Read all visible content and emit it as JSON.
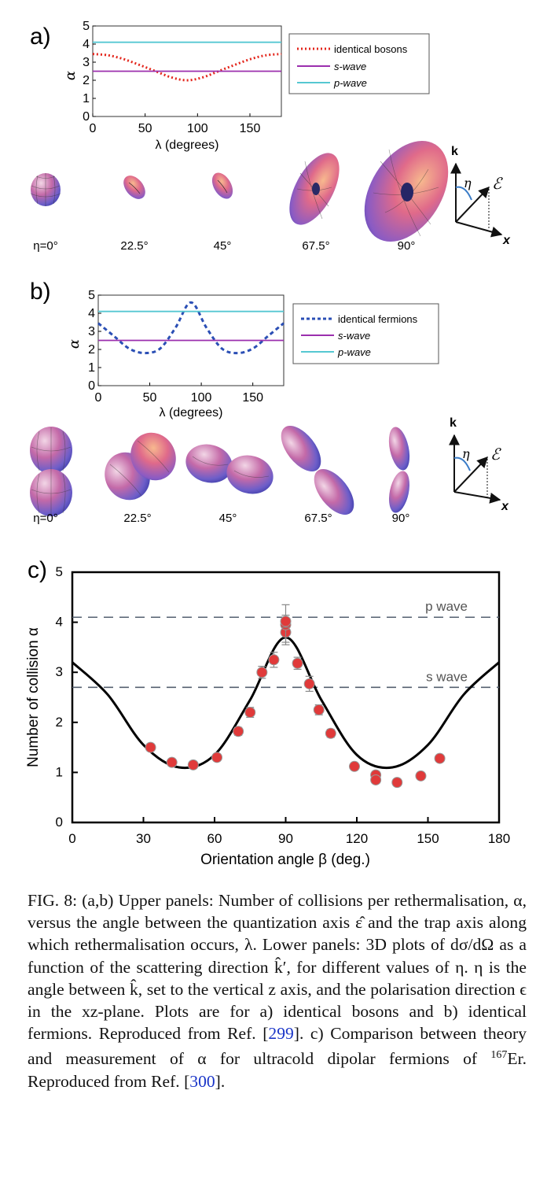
{
  "panels": [
    {
      "label": "a)",
      "chart_data": {
        "type": "line",
        "xlabel": "λ (degrees)",
        "ylabel": "α",
        "xlim": [
          0,
          180
        ],
        "ylim": [
          0,
          5
        ],
        "xticks": [
          "0",
          "50",
          "100",
          "150"
        ],
        "yticks": [
          "0",
          "1",
          "2",
          "3",
          "4",
          "5"
        ],
        "grid": false,
        "legend": "right",
        "series": [
          {
            "name": "identical bosons",
            "style": "dotted",
            "color": "#e3261c",
            "x": [
              0,
              15,
              30,
              45,
              60,
              75,
              90,
              105,
              120,
              135,
              150,
              165,
              180
            ],
            "y": [
              3.45,
              3.38,
              3.16,
              2.84,
              2.5,
              2.16,
              2.0,
              2.16,
              2.5,
              2.84,
              3.16,
              3.38,
              3.45
            ]
          },
          {
            "name": "s-wave",
            "style": "solid",
            "color": "#9b2fae",
            "x": [
              0,
              180
            ],
            "y": [
              2.5,
              2.5
            ]
          },
          {
            "name": "p-wave",
            "style": "solid",
            "color": "#56c8d2",
            "x": [
              0,
              180
            ],
            "y": [
              4.1,
              4.1
            ]
          }
        ]
      },
      "eta_labels": [
        "η=0°",
        "22.5°",
        "45°",
        "67.5°",
        "90°"
      ],
      "inset": {
        "k": "k",
        "eta": "η",
        "eps": "ℰ",
        "x": "x"
      }
    },
    {
      "label": "b)",
      "chart_data": {
        "type": "line",
        "xlabel": "λ (degrees)",
        "ylabel": "α",
        "xlim": [
          0,
          180
        ],
        "ylim": [
          0,
          5
        ],
        "xticks": [
          "0",
          "50",
          "100",
          "150"
        ],
        "yticks": [
          "0",
          "1",
          "2",
          "3",
          "4",
          "5"
        ],
        "grid": false,
        "legend": "right",
        "series": [
          {
            "name": "identical fermions",
            "style": "dashed",
            "color": "#2b4fb5",
            "x": [
              0,
              15,
              30,
              45,
              60,
              75,
              90,
              105,
              120,
              135,
              150,
              165,
              180
            ],
            "y": [
              3.45,
              2.75,
              2.05,
              1.8,
              2.05,
              3.2,
              4.6,
              3.2,
              2.05,
              1.8,
              2.05,
              2.75,
              3.45
            ]
          },
          {
            "name": "s-wave",
            "style": "solid",
            "color": "#9b2fae",
            "x": [
              0,
              180
            ],
            "y": [
              2.5,
              2.5
            ]
          },
          {
            "name": "p-wave",
            "style": "solid",
            "color": "#56c8d2",
            "x": [
              0,
              180
            ],
            "y": [
              4.1,
              4.1
            ]
          }
        ]
      },
      "eta_labels": [
        "η=0°",
        "22.5°",
        "45°",
        "67.5°",
        "90°"
      ],
      "inset": {
        "k": "k",
        "eta": "η",
        "eps": "ℰ",
        "x": "x"
      }
    },
    {
      "label": "c)",
      "chart_data": {
        "type": "scatter",
        "xlabel": "Orientation angle β (deg.)",
        "ylabel": "Number of collision α",
        "xlim": [
          0,
          180
        ],
        "ylim": [
          0,
          5
        ],
        "xticks": [
          "0",
          "30",
          "60",
          "90",
          "120",
          "150",
          "180"
        ],
        "yticks": [
          "0",
          "1",
          "2",
          "3",
          "4",
          "5"
        ],
        "grid": false,
        "annotations": [
          {
            "text": "p wave",
            "y": 4.1
          },
          {
            "text": "s wave",
            "y": 2.7
          }
        ],
        "theory": {
          "x": [
            0,
            15,
            30,
            45,
            60,
            75,
            90,
            105,
            120,
            135,
            150,
            165,
            180
          ],
          "y": [
            3.2,
            2.55,
            1.55,
            1.1,
            1.35,
            2.45,
            3.7,
            2.45,
            1.35,
            1.1,
            1.55,
            2.55,
            3.2
          ]
        },
        "points": [
          {
            "x": 33,
            "y": 1.5,
            "err": 0.07
          },
          {
            "x": 42,
            "y": 1.2,
            "err": 0.07
          },
          {
            "x": 51,
            "y": 1.15,
            "err": 0.07
          },
          {
            "x": 61,
            "y": 1.3,
            "err": 0.07
          },
          {
            "x": 70,
            "y": 1.82,
            "err": 0.08
          },
          {
            "x": 75,
            "y": 2.2,
            "err": 0.1
          },
          {
            "x": 80,
            "y": 3.0,
            "err": 0.12
          },
          {
            "x": 85,
            "y": 3.25,
            "err": 0.15
          },
          {
            "x": 90,
            "y": 3.8,
            "err": 0.2
          },
          {
            "x": 90,
            "y": 3.95,
            "err": 0.4
          },
          {
            "x": 90,
            "y": 4.02,
            "err": 0.12
          },
          {
            "x": 95,
            "y": 3.18,
            "err": 0.12
          },
          {
            "x": 100,
            "y": 2.77,
            "err": 0.15
          },
          {
            "x": 104,
            "y": 2.25,
            "err": 0.1
          },
          {
            "x": 109,
            "y": 1.78,
            "err": 0.08
          },
          {
            "x": 119,
            "y": 1.12,
            "err": 0.07
          },
          {
            "x": 128,
            "y": 0.95,
            "err": 0.07
          },
          {
            "x": 128,
            "y": 0.85,
            "err": 0.07
          },
          {
            "x": 137,
            "y": 0.8,
            "err": 0.06
          },
          {
            "x": 147,
            "y": 0.93,
            "err": 0.06
          },
          {
            "x": 155,
            "y": 1.28,
            "err": 0.06
          }
        ]
      }
    }
  ],
  "colors": {
    "point": "#e03a3a",
    "curve": "#000000",
    "dashline": "#556070"
  },
  "caption": {
    "p1": "FIG. 8: (a,b) Upper panels: Number of collisions per rethermalisation, α, versus the angle between the quantization axis ε̂ and the trap axis along which rethermalisation occurs, λ. Lower panels: 3D plots of dσ/dΩ as a function of the scattering direction k̂′, for different values of η. η is the angle between k̂, set to the vertical z axis, and the polarisation direction ϵ in the xz-plane. Plots are for a) identical bosons and b) identical fermions. Reproduced from Ref. [",
    "ref1": "299",
    "p2": "]. c) Comparison between theory and measurement of α for ultracold dipolar fermions of ",
    "sup": "167",
    "p3": "Er. Reproduced from Ref. [",
    "ref2": "300",
    "p4": "]."
  }
}
